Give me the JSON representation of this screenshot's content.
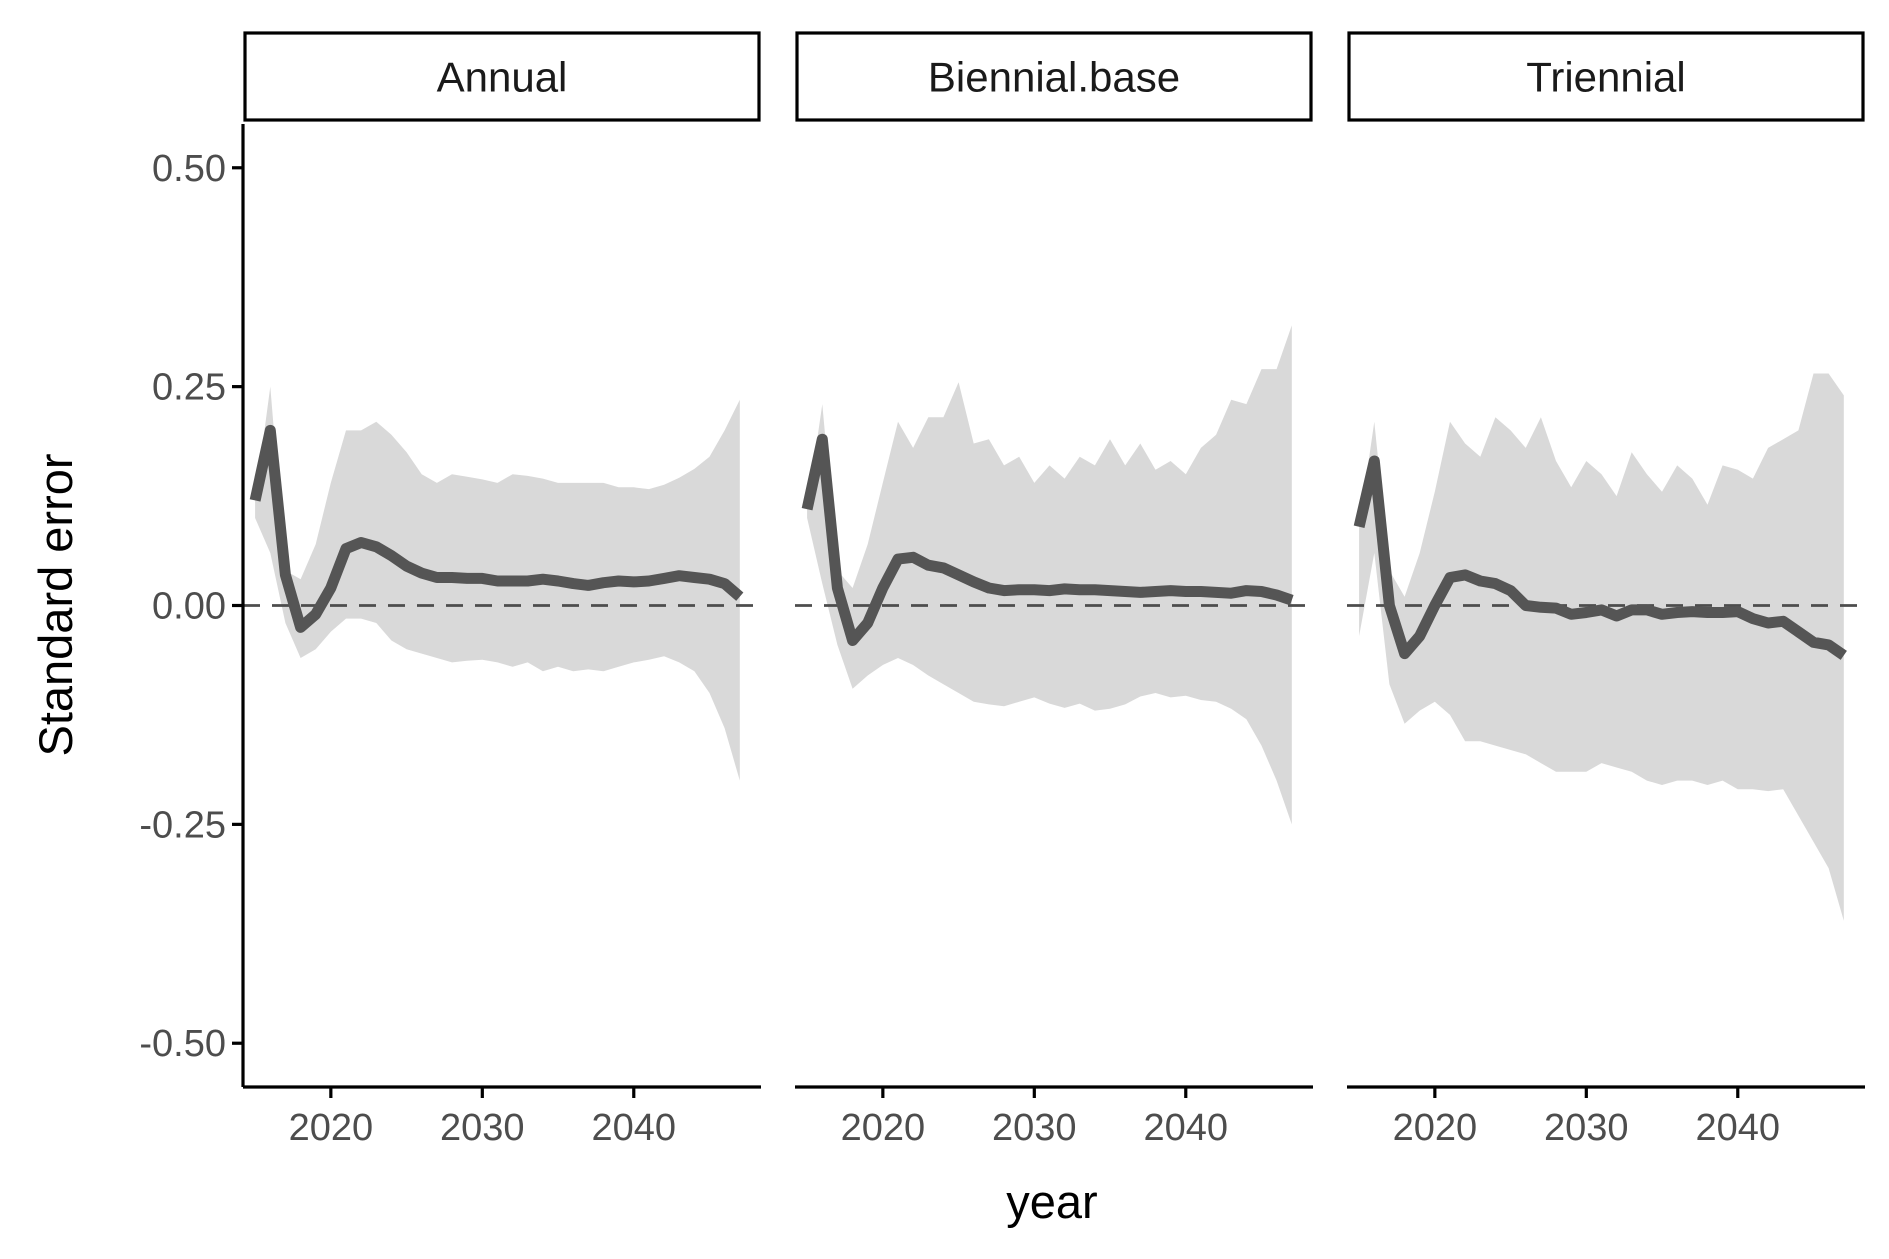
{
  "chart_data": {
    "type": "area",
    "xlabel": "year",
    "ylabel": "Standard error",
    "ylim": [
      -0.55,
      0.55
    ],
    "xlim": [
      2014.2,
      2048.4
    ],
    "y_ticks": [
      0.5,
      0.25,
      0,
      -0.25,
      -0.5
    ],
    "y_tick_labels": [
      "0.50",
      "0.25",
      "0.00",
      "-0.25",
      "-0.50"
    ],
    "x_ticks": [
      2020,
      2030,
      2040
    ],
    "x_tick_labels": [
      "2020",
      "2030",
      "2040"
    ],
    "reference_line": {
      "y": 0,
      "style": "dashed"
    },
    "grid": false,
    "colors": {
      "ribbon": "#d9d9d9",
      "line": "#555555",
      "reference": "#4d4d4d"
    },
    "panels": [
      {
        "name": "Annual",
        "years": [
          2015,
          2016,
          2017,
          2018,
          2019,
          2020,
          2021,
          2022,
          2023,
          2024,
          2025,
          2026,
          2027,
          2028,
          2029,
          2030,
          2031,
          2032,
          2033,
          2034,
          2035,
          2036,
          2037,
          2038,
          2039,
          2040,
          2041,
          2042,
          2043,
          2044,
          2045,
          2046,
          2047
        ],
        "median": [
          0.12,
          0.2,
          0.035,
          -0.025,
          -0.01,
          0.02,
          0.065,
          0.072,
          0.067,
          0.057,
          0.045,
          0.037,
          0.032,
          0.032,
          0.031,
          0.031,
          0.028,
          0.028,
          0.028,
          0.03,
          0.028,
          0.025,
          0.023,
          0.026,
          0.028,
          0.027,
          0.028,
          0.031,
          0.034,
          0.032,
          0.03,
          0.025,
          0.01
        ],
        "upper": [
          0.12,
          0.25,
          0.04,
          0.03,
          0.07,
          0.14,
          0.2,
          0.2,
          0.21,
          0.195,
          0.175,
          0.15,
          0.14,
          0.15,
          0.147,
          0.144,
          0.14,
          0.15,
          0.148,
          0.145,
          0.14,
          0.14,
          0.14,
          0.14,
          0.135,
          0.135,
          0.133,
          0.138,
          0.146,
          0.156,
          0.17,
          0.2,
          0.235
        ],
        "lower": [
          0.1,
          0.06,
          -0.02,
          -0.06,
          -0.05,
          -0.03,
          -0.015,
          -0.015,
          -0.02,
          -0.04,
          -0.05,
          -0.055,
          -0.06,
          -0.065,
          -0.063,
          -0.062,
          -0.065,
          -0.07,
          -0.065,
          -0.075,
          -0.07,
          -0.075,
          -0.073,
          -0.075,
          -0.07,
          -0.065,
          -0.062,
          -0.058,
          -0.065,
          -0.075,
          -0.1,
          -0.14,
          -0.2
        ]
      },
      {
        "name": "Biennial.base",
        "years": [
          2015,
          2016,
          2017,
          2018,
          2019,
          2020,
          2021,
          2022,
          2023,
          2024,
          2025,
          2026,
          2027,
          2028,
          2029,
          2030,
          2031,
          2032,
          2033,
          2034,
          2035,
          2036,
          2037,
          2038,
          2039,
          2040,
          2041,
          2042,
          2043,
          2044,
          2045,
          2046,
          2047
        ],
        "median": [
          0.11,
          0.19,
          0.02,
          -0.04,
          -0.02,
          0.02,
          0.053,
          0.055,
          0.046,
          0.043,
          0.035,
          0.027,
          0.02,
          0.017,
          0.018,
          0.018,
          0.017,
          0.019,
          0.018,
          0.018,
          0.017,
          0.016,
          0.015,
          0.016,
          0.017,
          0.016,
          0.016,
          0.015,
          0.014,
          0.017,
          0.016,
          0.012,
          0.006
        ],
        "upper": [
          0.11,
          0.23,
          0.04,
          0.02,
          0.07,
          0.14,
          0.21,
          0.18,
          0.215,
          0.215,
          0.255,
          0.185,
          0.19,
          0.16,
          0.17,
          0.14,
          0.16,
          0.145,
          0.17,
          0.16,
          0.19,
          0.16,
          0.185,
          0.155,
          0.165,
          0.15,
          0.18,
          0.195,
          0.235,
          0.23,
          0.27,
          0.27,
          0.32
        ],
        "lower": [
          0.1,
          0.025,
          -0.045,
          -0.095,
          -0.08,
          -0.068,
          -0.06,
          -0.068,
          -0.08,
          -0.09,
          -0.1,
          -0.11,
          -0.113,
          -0.115,
          -0.11,
          -0.105,
          -0.112,
          -0.117,
          -0.112,
          -0.12,
          -0.118,
          -0.113,
          -0.104,
          -0.1,
          -0.105,
          -0.103,
          -0.108,
          -0.11,
          -0.118,
          -0.13,
          -0.16,
          -0.2,
          -0.25
        ]
      },
      {
        "name": "Triennial",
        "years": [
          2015,
          2016,
          2017,
          2018,
          2019,
          2020,
          2021,
          2022,
          2023,
          2024,
          2025,
          2026,
          2027,
          2028,
          2029,
          2030,
          2031,
          2032,
          2033,
          2034,
          2035,
          2036,
          2037,
          2038,
          2039,
          2040,
          2041,
          2042,
          2043,
          2044,
          2045,
          2046,
          2047
        ],
        "median": [
          0.09,
          0.165,
          0.0,
          -0.055,
          -0.035,
          0.0,
          0.032,
          0.035,
          0.028,
          0.025,
          0.017,
          0.0,
          -0.002,
          -0.003,
          -0.01,
          -0.008,
          -0.005,
          -0.012,
          -0.005,
          -0.005,
          -0.01,
          -0.008,
          -0.007,
          -0.008,
          -0.008,
          -0.007,
          -0.015,
          -0.02,
          -0.018,
          -0.03,
          -0.042,
          -0.045,
          -0.057
        ],
        "upper": [
          0.09,
          0.21,
          0.04,
          0.01,
          0.06,
          0.13,
          0.21,
          0.185,
          0.17,
          0.215,
          0.2,
          0.18,
          0.215,
          0.165,
          0.135,
          0.165,
          0.15,
          0.125,
          0.175,
          0.15,
          0.13,
          0.16,
          0.145,
          0.115,
          0.16,
          0.155,
          0.145,
          0.18,
          0.19,
          0.2,
          0.265,
          0.265,
          0.24
        ],
        "lower": [
          -0.035,
          0.06,
          -0.09,
          -0.135,
          -0.12,
          -0.11,
          -0.125,
          -0.155,
          -0.155,
          -0.16,
          -0.165,
          -0.17,
          -0.18,
          -0.19,
          -0.19,
          -0.19,
          -0.18,
          -0.185,
          -0.19,
          -0.2,
          -0.205,
          -0.2,
          -0.2,
          -0.205,
          -0.2,
          -0.21,
          -0.21,
          -0.212,
          -0.21,
          -0.24,
          -0.27,
          -0.3,
          -0.36
        ]
      }
    ]
  }
}
